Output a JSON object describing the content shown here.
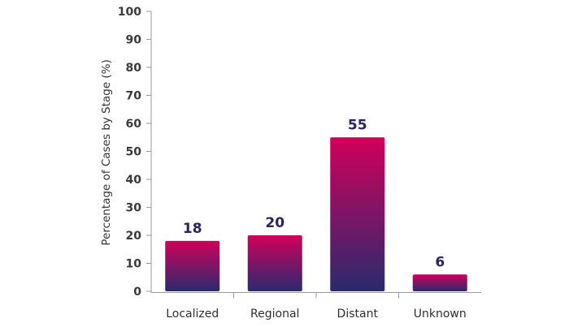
{
  "chart_data": {
    "type": "bar",
    "title": "",
    "xlabel": "",
    "ylabel": "Percentage of Cases by Stage (%)",
    "categories": [
      "Localized",
      "Regional",
      "Distant",
      "Unknown"
    ],
    "values": [
      18,
      20,
      55,
      6
    ],
    "ylim": [
      0,
      100
    ],
    "yticks": [
      0,
      10,
      20,
      30,
      40,
      50,
      60,
      70,
      80,
      90,
      100
    ],
    "grid": false,
    "legend": "none",
    "data_labels": true,
    "colors": {
      "bar_top": "#d1005a",
      "bar_bottom": "#2a2a6e",
      "data_label": "#2d2260",
      "axis": "#9a9a9a",
      "tick_text": "#3a3a3a"
    }
  }
}
